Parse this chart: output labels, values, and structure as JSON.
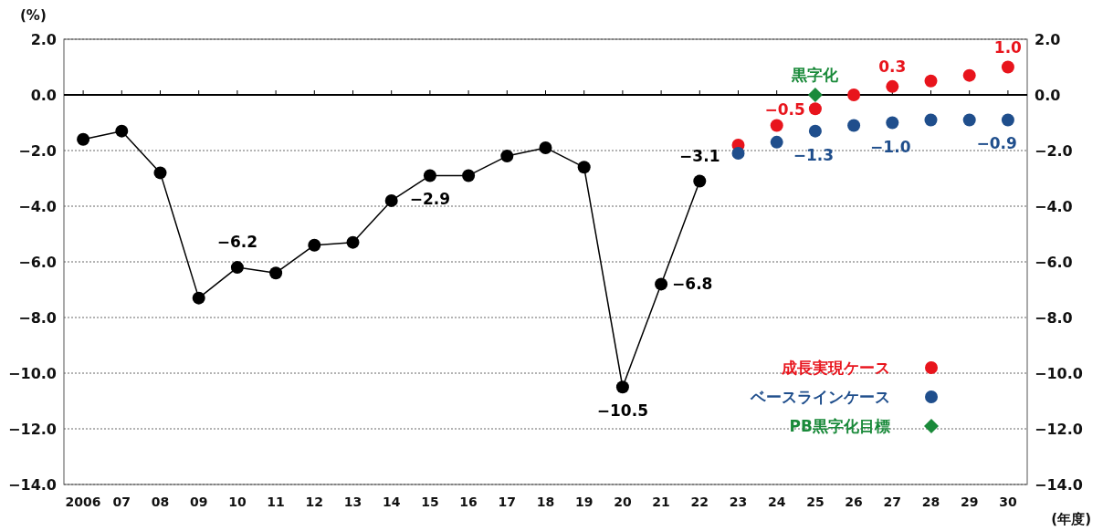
{
  "chart_data": {
    "type": "line",
    "xlabel": "(年度)",
    "ylabel": "(%)",
    "categories": [
      "2006",
      "07",
      "08",
      "09",
      "10",
      "11",
      "12",
      "13",
      "14",
      "15",
      "16",
      "17",
      "18",
      "19",
      "20",
      "21",
      "22",
      "23",
      "24",
      "25",
      "26",
      "27",
      "28",
      "29",
      "30"
    ],
    "series": [
      {
        "color": "#000000",
        "marker": "circle",
        "values": [
          -1.6,
          -1.3,
          -2.8,
          -7.3,
          -6.2,
          -6.4,
          -5.4,
          -5.3,
          -3.8,
          -2.9,
          -2.9,
          -2.2,
          -1.9,
          -2.6,
          -10.5,
          -6.8,
          -3.1,
          null,
          null,
          null,
          null,
          null,
          null,
          null,
          null
        ],
        "value_labels": [
          null,
          null,
          null,
          null,
          "−6.2",
          null,
          null,
          null,
          null,
          "−2.9",
          null,
          null,
          null,
          null,
          "−10.5",
          "−6.8",
          "−3.1",
          null,
          null,
          null,
          null,
          null,
          null,
          null,
          null
        ]
      },
      {
        "type": "scatter",
        "name": "成長実現ケース",
        "color": "#e8141c",
        "marker": "circle",
        "values": [
          null,
          null,
          null,
          null,
          null,
          null,
          null,
          null,
          null,
          null,
          null,
          null,
          null,
          null,
          null,
          null,
          null,
          -1.8,
          -1.1,
          -0.5,
          0.0,
          0.3,
          0.5,
          0.7,
          1.0
        ],
        "value_labels": [
          null,
          null,
          null,
          null,
          null,
          null,
          null,
          null,
          null,
          null,
          null,
          null,
          null,
          null,
          null,
          null,
          null,
          null,
          null,
          "−0.5",
          null,
          "0.3",
          null,
          null,
          "1.0"
        ]
      },
      {
        "type": "scatter",
        "name": "ベースラインケース",
        "color": "#1f4e8c",
        "marker": "circle",
        "values": [
          null,
          null,
          null,
          null,
          null,
          null,
          null,
          null,
          null,
          null,
          null,
          null,
          null,
          null,
          null,
          null,
          null,
          -2.1,
          -1.7,
          -1.3,
          -1.1,
          -1.0,
          -0.9,
          -0.9,
          -0.9
        ],
        "value_labels": [
          null,
          null,
          null,
          null,
          null,
          null,
          null,
          null,
          null,
          null,
          null,
          null,
          null,
          null,
          null,
          null,
          null,
          null,
          null,
          "−1.3",
          null,
          "−1.0",
          null,
          null,
          "−0.9"
        ]
      },
      {
        "type": "scatter",
        "name": "PB黒字化目標",
        "color": "#1a8a3a",
        "marker": "diamond",
        "values": [
          null,
          null,
          null,
          null,
          null,
          null,
          null,
          null,
          null,
          null,
          null,
          null,
          null,
          null,
          null,
          null,
          null,
          null,
          null,
          0.0,
          null,
          null,
          null,
          null,
          null
        ]
      }
    ],
    "annotations": [
      {
        "text": "黒字化",
        "x": "25",
        "y": 0.0
      }
    ],
    "ylim": [
      -14,
      2
    ],
    "yticks": [
      {
        "value": 2,
        "label": "2.0"
      },
      {
        "value": 0,
        "label": "0.0"
      },
      {
        "value": -2,
        "label": "−2.0"
      },
      {
        "value": -4,
        "label": "−4.0"
      },
      {
        "value": -6,
        "label": "−6.0"
      },
      {
        "value": -8,
        "label": "−8.0"
      },
      {
        "value": -10,
        "label": "−10.0"
      },
      {
        "value": -12,
        "label": "−12.0"
      },
      {
        "value": -14,
        "label": "−14.0"
      }
    ],
    "y2lim": [
      -14,
      2
    ],
    "y2ticks": [
      {
        "value": 2,
        "label": "2.0"
      },
      {
        "value": 0,
        "label": "0.0"
      },
      {
        "value": -2,
        "label": "−2.0"
      },
      {
        "value": -4,
        "label": "−4.0"
      },
      {
        "value": -6,
        "label": "−6.0"
      },
      {
        "value": -8,
        "label": "−8.0"
      },
      {
        "value": -10,
        "label": "−10.0"
      },
      {
        "value": -12,
        "label": "−12.0"
      },
      {
        "value": -14,
        "label": "−14.0"
      }
    ],
    "grid": "y",
    "legend": "bottom right"
  }
}
